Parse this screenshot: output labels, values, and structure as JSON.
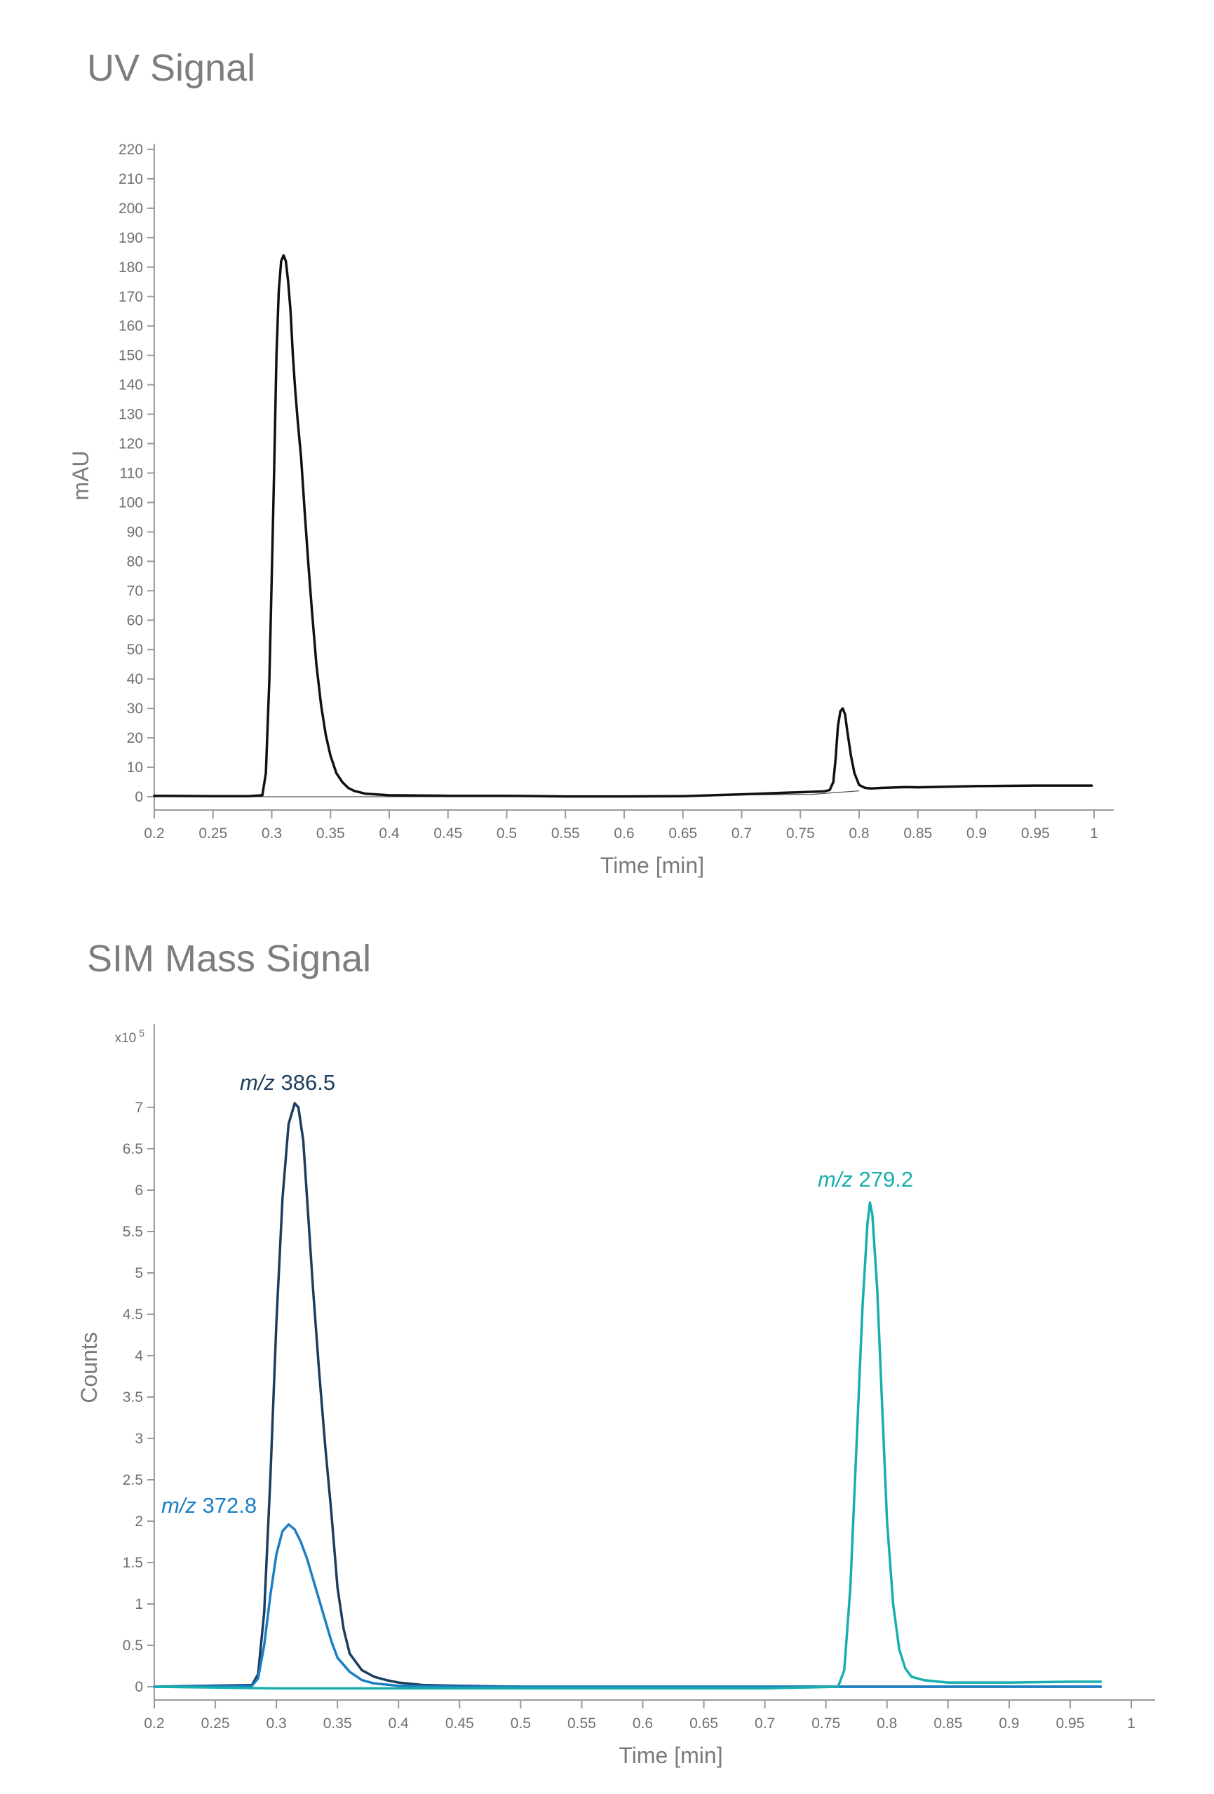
{
  "chart_data": [
    {
      "type": "line",
      "title": "UV Signal",
      "xlabel": "Time [min]",
      "ylabel": "mAU",
      "xlim": [
        0.2,
        1
      ],
      "ylim": [
        0,
        220
      ],
      "x_ticks": [
        "0.2",
        "0.25",
        "0.3",
        "0.35",
        "0.4",
        "0.45",
        "0.5",
        "0.55",
        "0.6",
        "0.65",
        "0.7",
        "0.75",
        "0.8",
        "0.85",
        "0.9",
        "0.95",
        "1"
      ],
      "y_ticks": [
        "0",
        "10",
        "20",
        "30",
        "40",
        "50",
        "60",
        "70",
        "80",
        "90",
        "100",
        "110",
        "120",
        "130",
        "140",
        "150",
        "160",
        "170",
        "180",
        "190",
        "200",
        "210",
        "220"
      ],
      "grid": false,
      "baseline": {
        "x": [
          0.2,
          0.31,
          0.5,
          0.76,
          0.8
        ],
        "y": [
          0,
          0,
          0,
          0.8,
          2
        ]
      },
      "series": [
        {
          "color": "#111111",
          "x": [
            0.2,
            0.25,
            0.28,
            0.292,
            0.295,
            0.298,
            0.3,
            0.302,
            0.304,
            0.306,
            0.308,
            0.31,
            0.312,
            0.314,
            0.316,
            0.318,
            0.32,
            0.322,
            0.325,
            0.328,
            0.331,
            0.334,
            0.338,
            0.342,
            0.346,
            0.35,
            0.355,
            0.36,
            0.365,
            0.37,
            0.38,
            0.4,
            0.45,
            0.5,
            0.55,
            0.6,
            0.65,
            0.7,
            0.74,
            0.77,
            0.775,
            0.778,
            0.78,
            0.782,
            0.784,
            0.786,
            0.788,
            0.79,
            0.793,
            0.796,
            0.8,
            0.805,
            0.81,
            0.82,
            0.84,
            0.85,
            0.9,
            0.95,
            0.998
          ],
          "y": [
            0.3,
            0.2,
            0.2,
            0.5,
            8,
            40,
            75,
            110,
            150,
            172,
            182,
            184,
            182,
            175,
            165,
            150,
            138,
            128,
            115,
            97,
            80,
            64,
            45,
            31,
            21,
            14,
            8,
            5,
            3,
            2,
            1,
            0.5,
            0.3,
            0.3,
            0.1,
            0.1,
            0.2,
            0.8,
            1.4,
            1.8,
            2.3,
            5,
            13,
            24,
            29,
            30,
            28,
            22,
            14,
            8,
            4,
            3,
            2.8,
            3,
            3.3,
            3.2,
            3.6,
            3.8,
            3.8
          ]
        }
      ]
    },
    {
      "type": "line",
      "title": "SIM Mass Signal",
      "xlabel": "Time [min]",
      "ylabel": "Counts",
      "y_multiplier": "x10 5",
      "xlim": [
        0.2,
        1
      ],
      "ylim": [
        0,
        7.5
      ],
      "x_ticks": [
        "0.2",
        "0.25",
        "0.3",
        "0.35",
        "0.4",
        "0.45",
        "0.5",
        "0.55",
        "0.6",
        "0.65",
        "0.7",
        "0.75",
        "0.8",
        "0.85",
        "0.9",
        "0.95",
        "1"
      ],
      "y_ticks": [
        "0",
        "0.5",
        "1",
        "1.5",
        "2",
        "2.5",
        "3",
        "3.5",
        "4",
        "4.5",
        "5",
        "5.5",
        "6",
        "6.5",
        "7"
      ],
      "grid": false,
      "series": [
        {
          "name_prefix": "m/z",
          "name_value": "386.5",
          "color": "#1b3d5e",
          "x": [
            0.2,
            0.28,
            0.285,
            0.29,
            0.295,
            0.3,
            0.305,
            0.31,
            0.315,
            0.318,
            0.322,
            0.326,
            0.33,
            0.335,
            0.34,
            0.345,
            0.35,
            0.355,
            0.36,
            0.37,
            0.38,
            0.39,
            0.4,
            0.42,
            0.45,
            0.5,
            0.6,
            0.7,
            0.8,
            0.9,
            0.975
          ],
          "y": [
            0,
            0.02,
            0.15,
            0.9,
            2.5,
            4.4,
            5.9,
            6.8,
            7.05,
            7.0,
            6.6,
            5.7,
            4.8,
            3.8,
            2.9,
            2.1,
            1.2,
            0.7,
            0.4,
            0.2,
            0.12,
            0.08,
            0.05,
            0.02,
            0.01,
            0,
            0,
            0,
            0,
            0,
            0
          ]
        },
        {
          "name_prefix": "m/z",
          "name_value": "372.8",
          "color": "#1a7fc4",
          "x": [
            0.2,
            0.28,
            0.285,
            0.29,
            0.295,
            0.3,
            0.305,
            0.31,
            0.315,
            0.32,
            0.325,
            0.33,
            0.335,
            0.34,
            0.345,
            0.35,
            0.36,
            0.37,
            0.38,
            0.4,
            0.45,
            0.5,
            0.6,
            0.7,
            0.8,
            0.9,
            0.975
          ],
          "y": [
            0,
            0.01,
            0.1,
            0.5,
            1.1,
            1.6,
            1.88,
            1.96,
            1.9,
            1.75,
            1.55,
            1.3,
            1.05,
            0.8,
            0.55,
            0.35,
            0.18,
            0.08,
            0.04,
            0.01,
            0,
            0,
            0,
            0,
            0,
            0,
            0
          ]
        },
        {
          "name_prefix": "m/z",
          "name_value": "279.2",
          "color": "#17aead",
          "x": [
            0.2,
            0.3,
            0.35,
            0.5,
            0.7,
            0.76,
            0.765,
            0.77,
            0.775,
            0.78,
            0.784,
            0.786,
            0.788,
            0.792,
            0.796,
            0.8,
            0.805,
            0.81,
            0.815,
            0.82,
            0.83,
            0.85,
            0.9,
            0.95,
            0.975
          ],
          "y": [
            0,
            -0.02,
            -0.02,
            -0.02,
            -0.02,
            0,
            0.2,
            1.2,
            2.9,
            4.6,
            5.6,
            5.85,
            5.7,
            4.8,
            3.4,
            2.0,
            1.0,
            0.45,
            0.22,
            0.12,
            0.08,
            0.05,
            0.05,
            0.06,
            0.06
          ]
        }
      ]
    }
  ]
}
